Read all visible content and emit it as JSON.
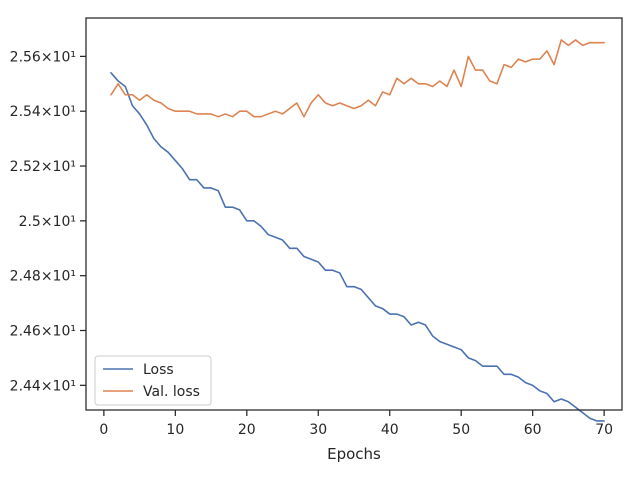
{
  "chart_data": {
    "type": "line",
    "title": "",
    "xlabel": "Epochs",
    "ylabel": "",
    "xlim": [
      -2.5,
      72.5
    ],
    "ylim": [
      24.31,
      25.74
    ],
    "x_ticks": [
      0,
      10,
      20,
      30,
      40,
      50,
      60,
      70
    ],
    "x_tick_labels": [
      "0",
      "10",
      "20",
      "30",
      "40",
      "50",
      "60",
      "70"
    ],
    "y_ticks": [
      24.4,
      24.6,
      24.8,
      25.0,
      25.2,
      25.4,
      25.6
    ],
    "y_tick_labels": [
      "2.44×10¹",
      "2.46×10¹",
      "2.48×10¹",
      "2.5×10¹",
      "2.52×10¹",
      "2.54×10¹",
      "2.56×10¹"
    ],
    "grid": false,
    "legend_position": "lower-left",
    "x": [
      1,
      2,
      3,
      4,
      5,
      6,
      7,
      8,
      9,
      10,
      11,
      12,
      13,
      14,
      15,
      16,
      17,
      18,
      19,
      20,
      21,
      22,
      23,
      24,
      25,
      26,
      27,
      28,
      29,
      30,
      31,
      32,
      33,
      34,
      35,
      36,
      37,
      38,
      39,
      40,
      41,
      42,
      43,
      44,
      45,
      46,
      47,
      48,
      49,
      50,
      51,
      52,
      53,
      54,
      55,
      56,
      57,
      58,
      59,
      60,
      61,
      62,
      63,
      64,
      65,
      66,
      67,
      68,
      69,
      70
    ],
    "series": [
      {
        "name": "Loss",
        "color": "#4c72b0",
        "values": [
          25.54,
          25.51,
          25.49,
          25.42,
          25.39,
          25.35,
          25.3,
          25.27,
          25.25,
          25.22,
          25.19,
          25.15,
          25.15,
          25.12,
          25.12,
          25.11,
          25.05,
          25.05,
          25.04,
          25.0,
          25.0,
          24.98,
          24.95,
          24.94,
          24.93,
          24.9,
          24.9,
          24.87,
          24.86,
          24.85,
          24.82,
          24.82,
          24.81,
          24.76,
          24.76,
          24.75,
          24.72,
          24.69,
          24.68,
          24.66,
          24.66,
          24.65,
          24.62,
          24.63,
          24.62,
          24.58,
          24.56,
          24.55,
          24.54,
          24.53,
          24.5,
          24.49,
          24.47,
          24.47,
          24.47,
          24.44,
          24.44,
          24.43,
          24.41,
          24.4,
          24.38,
          24.37,
          24.34,
          24.35,
          24.34,
          24.32,
          24.3,
          24.28,
          24.27,
          24.27
        ]
      },
      {
        "name": "Val. loss",
        "color": "#dd8452",
        "values": [
          25.46,
          25.5,
          25.46,
          25.46,
          25.44,
          25.46,
          25.44,
          25.43,
          25.41,
          25.4,
          25.4,
          25.4,
          25.39,
          25.39,
          25.39,
          25.38,
          25.39,
          25.38,
          25.4,
          25.4,
          25.38,
          25.38,
          25.39,
          25.4,
          25.39,
          25.41,
          25.43,
          25.38,
          25.43,
          25.46,
          25.43,
          25.42,
          25.43,
          25.42,
          25.41,
          25.42,
          25.44,
          25.42,
          25.47,
          25.46,
          25.52,
          25.5,
          25.52,
          25.5,
          25.5,
          25.49,
          25.51,
          25.49,
          25.55,
          25.49,
          25.6,
          25.55,
          25.55,
          25.51,
          25.5,
          25.57,
          25.56,
          25.59,
          25.58,
          25.59,
          25.59,
          25.62,
          25.57,
          25.66,
          25.64,
          25.66,
          25.64,
          25.65,
          25.65,
          25.65
        ]
      }
    ]
  }
}
